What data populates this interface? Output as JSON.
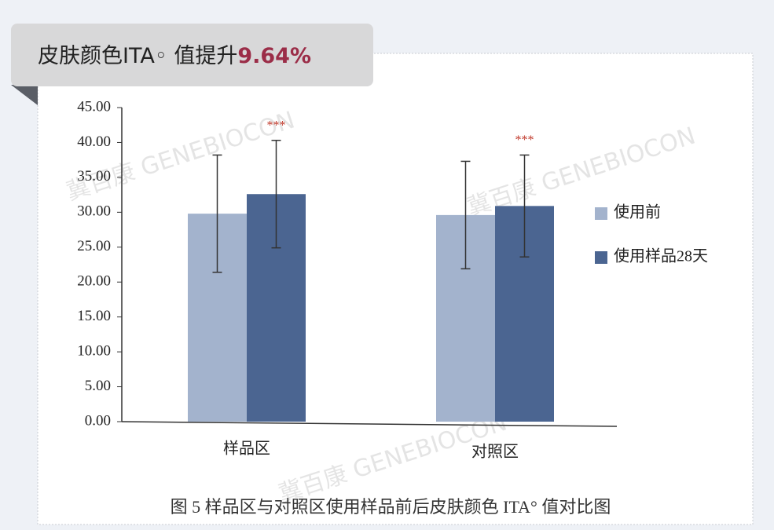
{
  "banner": {
    "text": "皮肤颜色ITA◦ 值提升",
    "highlight": "9.64%"
  },
  "chart_data": {
    "type": "bar",
    "caption": "图 5  样品区与对照区使用样品前后皮肤颜色 ITA°  值对比图",
    "watermark": "冀百康 GENEBIOCON",
    "categories": [
      "样品区",
      "对照区"
    ],
    "series": [
      {
        "name": "使用前",
        "color": "#a3b3cd",
        "values": [
          29.8,
          29.6
        ],
        "errors": [
          8.4,
          7.7
        ]
      },
      {
        "name": "使用样品28天",
        "color": "#4b6591",
        "values": [
          32.6,
          30.9
        ],
        "errors": [
          7.7,
          7.3
        ]
      }
    ],
    "significance": [
      "***",
      "***"
    ],
    "ylim": [
      0,
      45
    ],
    "yticks": [
      {
        "value": 0,
        "label": "0.00"
      },
      {
        "value": 5,
        "label": "5.00"
      },
      {
        "value": 10,
        "label": "10.00"
      },
      {
        "value": 15,
        "label": "15.00"
      },
      {
        "value": 20,
        "label": "20.00"
      },
      {
        "value": 25,
        "label": "25.00"
      },
      {
        "value": 30,
        "label": "30.00"
      },
      {
        "value": 35,
        "label": "35.00"
      },
      {
        "value": 40,
        "label": "40.00"
      },
      {
        "value": 45,
        "label": "45.00"
      }
    ],
    "legend": "right",
    "grid": false
  }
}
